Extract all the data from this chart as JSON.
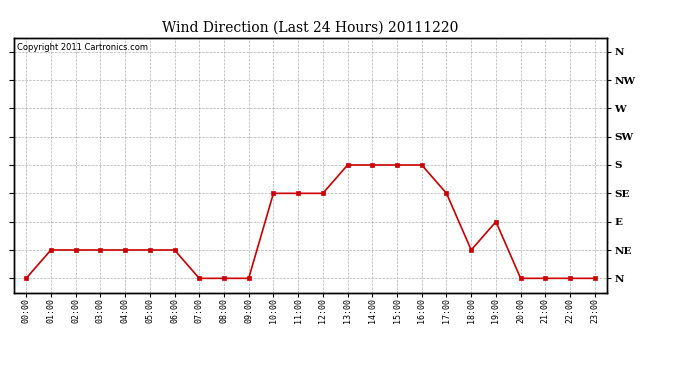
{
  "title": "Wind Direction (Last 24 Hours) 20111220",
  "copyright": "Copyright 2011 Cartronics.com",
  "hours": [
    0,
    1,
    2,
    3,
    4,
    5,
    6,
    7,
    8,
    9,
    10,
    11,
    12,
    13,
    14,
    15,
    16,
    17,
    18,
    19,
    20,
    21,
    22,
    23
  ],
  "wind_values": [
    0,
    1,
    1,
    1,
    1,
    1,
    1,
    0,
    0,
    0,
    3,
    3,
    3,
    4,
    4,
    4,
    4,
    3,
    1,
    2,
    0,
    0,
    0,
    0
  ],
  "ytick_labels": [
    "N",
    "NE",
    "E",
    "SE",
    "S",
    "SW",
    "W",
    "NW",
    "N"
  ],
  "ytick_values": [
    0,
    1,
    2,
    3,
    4,
    5,
    6,
    7,
    8
  ],
  "line_color": "#cc0000",
  "marker": "s",
  "marker_size": 2.5,
  "marker_face": "#cc0000",
  "bg_color": "#ffffff",
  "grid_color": "#aaaaaa",
  "title_fontsize": 10,
  "copyright_fontsize": 6,
  "tick_fontsize": 6,
  "ylabel_right_fontsize": 7.5
}
